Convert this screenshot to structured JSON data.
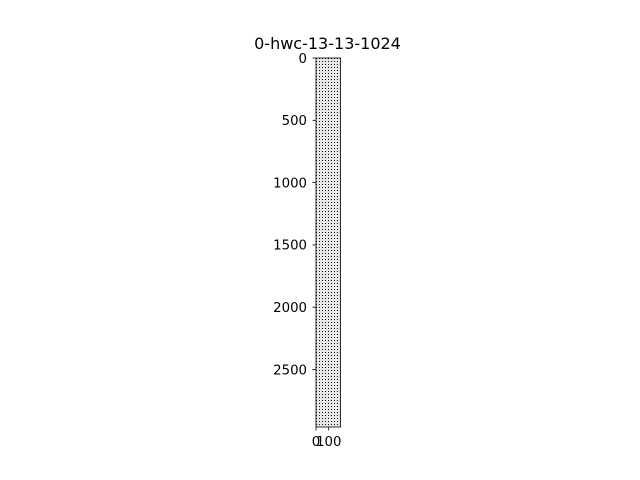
{
  "chart_data": {
    "type": "heatmap",
    "title": "0-hwc-13-13-1024",
    "xlabel": "",
    "ylabel": "",
    "width": 192,
    "height": 2961,
    "xlim": [
      0,
      192
    ],
    "ylim": [
      2961,
      0
    ],
    "x_ticks": [
      0,
      100
    ],
    "y_ticks": [
      0,
      500,
      1000,
      1500,
      2000,
      2500
    ],
    "grid": false,
    "legend": "none",
    "colormap": "gray",
    "pattern": "dense fine-grained dot pattern of dark points on light gray background",
    "colors": {
      "background": "#ffffff",
      "cell_light": "#e6e6e6",
      "cell_dark": "#1a1a1a",
      "axis": "#000000"
    }
  }
}
